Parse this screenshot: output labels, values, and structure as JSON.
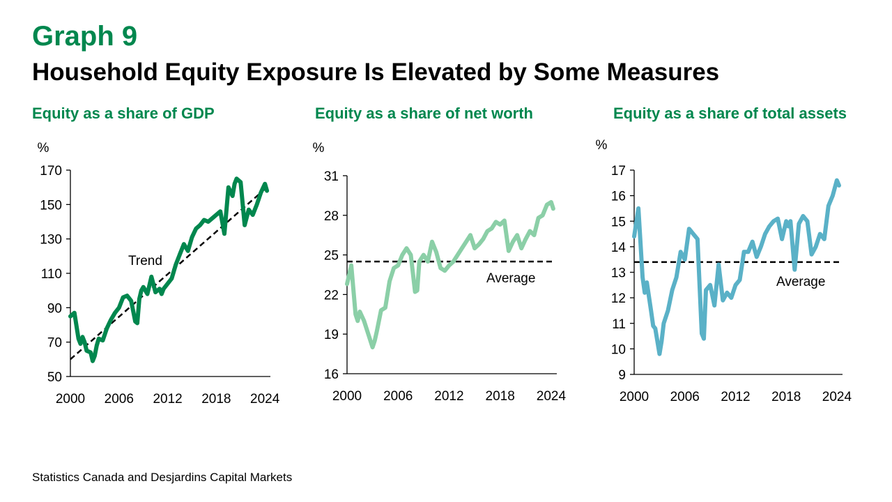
{
  "header": {
    "graph_label": "Graph 9",
    "title": "Household Equity Exposure Is Elevated by Some Measures"
  },
  "source": "Statistics Canada and Desjardins Capital Markets",
  "chart_data": [
    {
      "type": "line",
      "title": "Equity as a share of GDP",
      "ylabel": "%",
      "ylim": [
        50,
        170
      ],
      "yticks": [
        50,
        70,
        90,
        110,
        130,
        150,
        170
      ],
      "xlim": [
        2000,
        2024.5
      ],
      "xticks": [
        2000,
        2006,
        2012,
        2018,
        2024
      ],
      "color": "#00874E",
      "series": [
        {
          "x": [
            2000,
            2000.5,
            2001,
            2001.25,
            2001.5,
            2001.75,
            2002,
            2002.5,
            2002.75,
            2003,
            2003.25,
            2003.5,
            2004,
            2004.5,
            2005,
            2005.5,
            2006,
            2006.5,
            2007,
            2007.5,
            2008,
            2008.25,
            2008.5,
            2008.75,
            2009,
            2009.5,
            2010,
            2010.5,
            2011,
            2011.25,
            2011.5,
            2012,
            2012.5,
            2013,
            2013.5,
            2014,
            2014.5,
            2015,
            2015.5,
            2016,
            2016.5,
            2017,
            2017.5,
            2018,
            2018.5,
            2019,
            2019.5,
            2020,
            2020.25,
            2020.5,
            2021,
            2021.5,
            2022,
            2022.5,
            2023,
            2023.5,
            2024,
            2024.25
          ],
          "y": [
            85,
            87,
            72,
            69,
            73,
            70,
            65,
            64,
            59,
            62,
            68,
            72,
            71,
            78,
            83,
            87,
            90,
            96,
            97,
            94,
            82,
            81,
            95,
            100,
            102,
            98,
            108,
            99,
            101,
            98,
            101,
            104,
            107,
            115,
            121,
            127,
            123,
            131,
            136,
            138,
            141,
            140,
            142,
            144,
            146,
            133,
            160,
            155,
            162,
            165,
            163,
            138,
            147,
            144,
            150,
            157,
            162,
            158
          ]
        }
      ],
      "annotation": "Trend",
      "reference_line": {
        "type": "trend",
        "from": [
          2000,
          60
        ],
        "to": [
          2024.25,
          160
        ]
      }
    },
    {
      "type": "line",
      "title": "Equity as a share of net worth",
      "ylabel": "%",
      "ylim": [
        16,
        31
      ],
      "yticks": [
        16,
        19,
        22,
        25,
        28,
        31
      ],
      "xlim": [
        2000,
        2024.5
      ],
      "xticks": [
        2000,
        2006,
        2012,
        2018,
        2024
      ],
      "color": "#8BCFA7",
      "series": [
        {
          "x": [
            2000,
            2000.5,
            2001,
            2001.25,
            2001.5,
            2002,
            2002.5,
            2003,
            2003.25,
            2003.5,
            2004,
            2004.5,
            2005,
            2005.5,
            2006,
            2006.5,
            2007,
            2007.5,
            2008,
            2008.25,
            2008.5,
            2009,
            2009.5,
            2010,
            2010.5,
            2011,
            2011.5,
            2012,
            2012.5,
            2013,
            2013.5,
            2014,
            2014.5,
            2015,
            2015.5,
            2016,
            2016.5,
            2017,
            2017.5,
            2018,
            2018.5,
            2019,
            2019.5,
            2020,
            2020.5,
            2021,
            2021.5,
            2022,
            2022.5,
            2023,
            2023.5,
            2024,
            2024.25
          ],
          "y": [
            22.8,
            24.2,
            20.5,
            20.0,
            20.7,
            20.0,
            19.0,
            18.0,
            18.5,
            19.2,
            20.8,
            21.0,
            23.0,
            24.0,
            24.2,
            25.0,
            25.5,
            25.0,
            22.2,
            22.3,
            24.5,
            25.0,
            24.5,
            26.0,
            25.2,
            24.0,
            23.8,
            24.2,
            24.5,
            25.0,
            25.5,
            26.0,
            26.5,
            25.5,
            25.8,
            26.2,
            26.8,
            27.0,
            27.5,
            27.3,
            27.6,
            25.3,
            26.0,
            26.5,
            25.5,
            26.2,
            26.8,
            26.5,
            27.8,
            28.0,
            28.8,
            29.0,
            28.5
          ]
        }
      ],
      "annotation": "Average",
      "reference_line": {
        "type": "average",
        "y": 24.5
      }
    },
    {
      "type": "line",
      "title": "Equity as a share of total assets",
      "ylabel": "%",
      "ylim": [
        9,
        17
      ],
      "yticks": [
        9,
        10,
        11,
        12,
        13,
        14,
        15,
        16,
        17
      ],
      "xlim": [
        2000,
        2024.5
      ],
      "xticks": [
        2000,
        2006,
        2012,
        2018,
        2024
      ],
      "color": "#5AB1C7",
      "series": [
        {
          "x": [
            2000,
            2000.5,
            2001,
            2001.25,
            2001.5,
            2002,
            2002.25,
            2002.5,
            2003,
            2003.25,
            2003.5,
            2004,
            2004.5,
            2005,
            2005.5,
            2006,
            2006.5,
            2007,
            2007.5,
            2008,
            2008.25,
            2008.5,
            2009,
            2009.5,
            2010,
            2010.5,
            2011,
            2011.5,
            2012,
            2012.5,
            2013,
            2013.5,
            2014,
            2014.5,
            2015,
            2015.5,
            2016,
            2016.5,
            2017,
            2017.5,
            2018,
            2018.25,
            2018.5,
            2019,
            2019.5,
            2020,
            2020.5,
            2021,
            2021.5,
            2022,
            2022.5,
            2023,
            2023.5,
            2024,
            2024.25
          ],
          "y": [
            14.4,
            15.5,
            12.8,
            12.2,
            12.6,
            11.5,
            10.9,
            10.8,
            9.8,
            10.3,
            11.0,
            11.5,
            12.3,
            12.8,
            13.8,
            13.5,
            14.7,
            14.5,
            14.3,
            10.6,
            10.4,
            12.3,
            12.5,
            11.7,
            13.3,
            11.9,
            12.2,
            12.0,
            12.5,
            12.7,
            13.8,
            13.8,
            14.2,
            13.6,
            14.0,
            14.5,
            14.8,
            15.0,
            15.1,
            14.3,
            15.0,
            14.8,
            15.0,
            13.1,
            14.9,
            15.2,
            15.0,
            13.7,
            14.0,
            14.5,
            14.3,
            15.6,
            16.0,
            16.6,
            16.4
          ]
        }
      ],
      "annotation": "Average",
      "reference_line": {
        "type": "average",
        "y": 13.4
      }
    }
  ]
}
